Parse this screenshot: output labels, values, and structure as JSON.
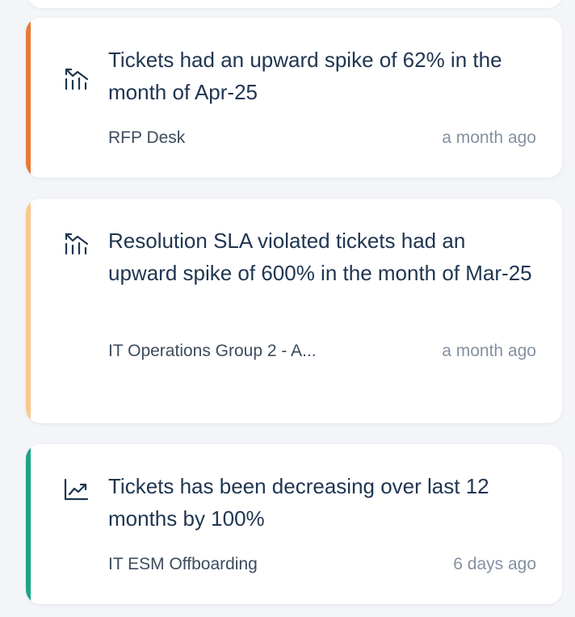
{
  "insights": [
    {
      "title": "Tickets had an upward spike of 62% in the month of Apr-25",
      "source": "RFP Desk",
      "time": "a month ago",
      "icon": "spike-chart-icon",
      "accent_color": "#e87a34"
    },
    {
      "title": "Resolution SLA violated tickets had an upward spike of 600% in the month of Mar-25",
      "source": "IT Operations Group 2 - A...",
      "time": "a month ago",
      "icon": "spike-chart-icon",
      "accent_color": "#f9c98b"
    },
    {
      "title": "Tickets has been decreasing over last 12 months by 100%",
      "source": "IT ESM Offboarding",
      "time": "6 days ago",
      "icon": "trend-line-icon",
      "accent_color": "#19a588"
    }
  ]
}
